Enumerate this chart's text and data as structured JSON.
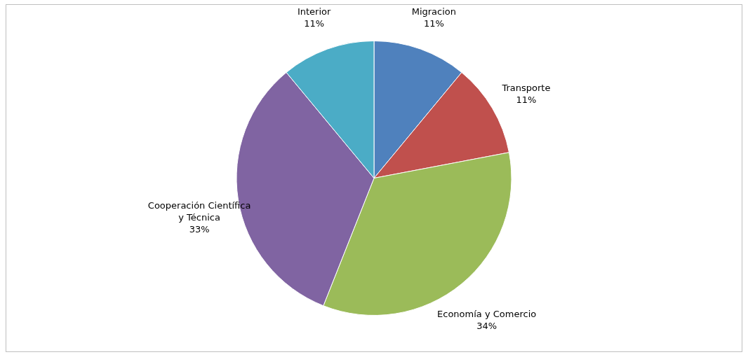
{
  "chart_data": {
    "type": "pie",
    "categories": [
      "Migracion",
      "Transporte",
      "Economía y Comercio",
      "Cooperación Científica y Técnica",
      "Interior"
    ],
    "values": [
      11,
      11,
      34,
      33,
      11
    ],
    "value_labels": [
      "11%",
      "11%",
      "34%",
      "33%",
      "11%"
    ],
    "colors": [
      "#4f81bd",
      "#c0504d",
      "#9bbb59",
      "#8064a2",
      "#4bacc6"
    ]
  }
}
